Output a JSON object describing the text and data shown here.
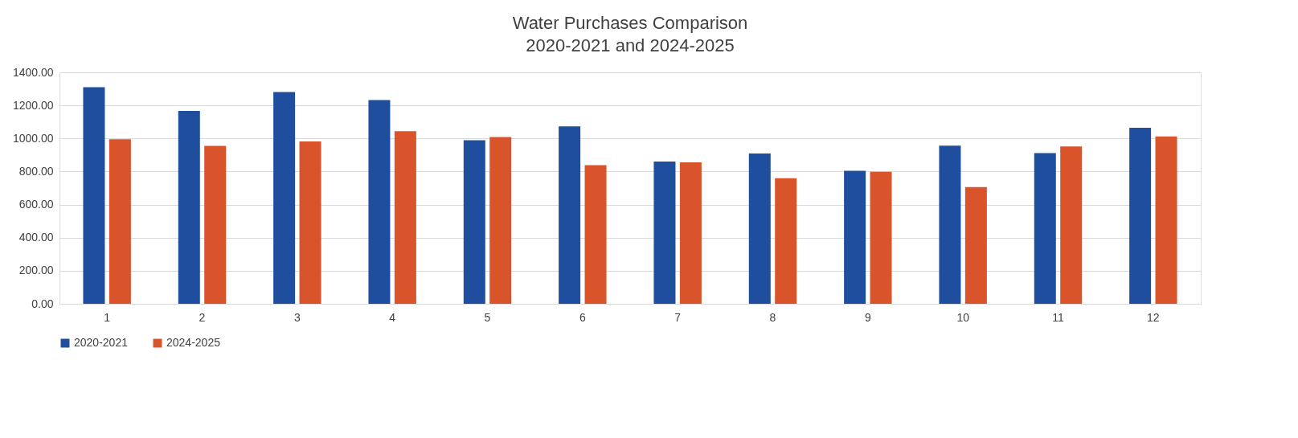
{
  "chart_data": {
    "type": "bar",
    "title": "Water Purchases Comparison",
    "subtitle": "2020-2021 and 2024-2025",
    "categories": [
      "1",
      "2",
      "3",
      "4",
      "5",
      "6",
      "7",
      "8",
      "9",
      "10",
      "11",
      "12"
    ],
    "series": [
      {
        "name": "2020-2021",
        "color": "#1f4e9e",
        "values": [
          1310,
          1167,
          1281,
          1232,
          989,
          1073,
          860,
          909,
          804,
          956,
          912,
          1064
        ]
      },
      {
        "name": "2024-2025",
        "color": "#d9532b",
        "values": [
          995,
          955,
          982,
          1044,
          1009,
          838,
          855,
          760,
          799,
          706,
          951,
          1012
        ]
      }
    ],
    "ylim": [
      0,
      1400
    ],
    "yticks": [
      {
        "value": 0,
        "label": "0.00"
      },
      {
        "value": 200,
        "label": "200.00"
      },
      {
        "value": 400,
        "label": "400.00"
      },
      {
        "value": 600,
        "label": "600.00"
      },
      {
        "value": 800,
        "label": "800.00"
      },
      {
        "value": 1000,
        "label": "1000.00"
      },
      {
        "value": 1200,
        "label": "1200.00"
      },
      {
        "value": 1400,
        "label": "1400.00"
      }
    ],
    "grid": "y",
    "legend": "bottom"
  }
}
